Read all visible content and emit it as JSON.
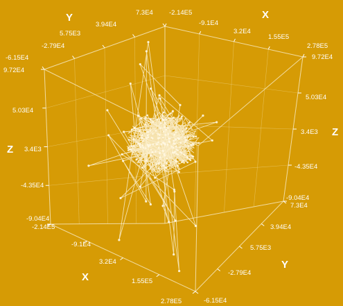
{
  "chart_data": {
    "type": "scatter3d-line",
    "colors": {
      "background": "#D69B05",
      "line": "#FBF0CF",
      "axis": "#FFFFFF"
    },
    "axes": {
      "x": {
        "title": "X",
        "range": [
          -214000,
          278000
        ],
        "ticks": [
          "-2.14E5",
          "-9.1E4",
          "3.2E4",
          "1.55E5",
          "2.78E5"
        ]
      },
      "y": {
        "title": "Y",
        "range": [
          -61500,
          97200
        ],
        "ticks": [
          "-6.15E4",
          "-2.79E4",
          "5.75E3",
          "3.94E4",
          "7.3E4"
        ]
      },
      "z": {
        "title": "Z",
        "range": [
          -90400,
          97200
        ],
        "ticks": [
          "-9.04E4",
          "-4.35E4",
          "3.4E3",
          "5.03E4",
          "9.72E4"
        ]
      }
    },
    "top_y_ticks": [
      "-6.15E4",
      "-2.79E4",
      "5.75E3",
      "3.94E4",
      "7.3E4"
    ],
    "top_x_ticks": [
      "-2.14E5",
      "-9.1E4",
      "3.2E4",
      "1.55E5",
      "2.78E5"
    ],
    "left_z_ticks": [
      "9.72E4",
      "5.03E4",
      "3.4E3",
      "-4.35E4",
      "-9.04E4"
    ],
    "right_z_ticks": [
      "9.72E4",
      "5.03E4",
      "3.4E3",
      "-4.35E4",
      "-9.04E4"
    ],
    "front_x_ticks": [
      "-2.14E5",
      "-9.1E4",
      "3.2E4",
      "1.55E5",
      "2.78E5"
    ],
    "front_y_ticks": [
      "7.3E4",
      "3.94E4",
      "5.75E3",
      "-2.79E4",
      "-6.15E4"
    ],
    "labels": {
      "y_top": "Y",
      "x_top": "X",
      "z_left": "Z",
      "z_right": "Z",
      "x_bottom": "X",
      "y_bottom": "Y"
    },
    "series": [
      {
        "points": [
          [
            -5000,
            10000,
            5000
          ],
          [
            12000,
            -8000,
            15000
          ],
          [
            -20000,
            15000,
            -10000
          ],
          [
            25000,
            5000,
            20000
          ],
          [
            -15000,
            -12000,
            30000
          ],
          [
            30000,
            20000,
            -5000
          ],
          [
            -40000,
            8000,
            10000
          ],
          [
            10000,
            -25000,
            -20000
          ],
          [
            45000,
            12000,
            25000
          ],
          [
            -30000,
            25000,
            35000
          ],
          [
            5000,
            35000,
            -25000
          ],
          [
            -60000,
            -5000,
            20000
          ],
          [
            55000,
            -10000,
            5000
          ],
          [
            -10000,
            30000,
            45000
          ],
          [
            20000,
            -30000,
            35000
          ],
          [
            -45000,
            20000,
            -30000
          ],
          [
            70000,
            25000,
            15000
          ],
          [
            -80000,
            10000,
            40000
          ],
          [
            35000,
            -20000,
            -40000
          ],
          [
            -25000,
            -35000,
            10000
          ],
          [
            15000,
            40000,
            10000
          ],
          [
            -55000,
            30000,
            55000
          ],
          [
            60000,
            5000,
            -30000
          ],
          [
            -5000,
            -45000,
            25000
          ],
          [
            85000,
            -15000,
            40000
          ],
          [
            -100000,
            35000,
            60000
          ],
          [
            40000,
            45000,
            -15000
          ],
          [
            -70000,
            -20000,
            -45000
          ],
          [
            95000,
            30000,
            50000
          ],
          [
            -35000,
            50000,
            5000
          ],
          [
            25000,
            -40000,
            60000
          ],
          [
            -120000,
            15000,
            70000
          ],
          [
            110000,
            -25000,
            -50000
          ],
          [
            -15000,
            20000,
            -60000
          ],
          [
            50000,
            15000,
            65000
          ],
          [
            -150000,
            40000,
            80000
          ],
          [
            130000,
            10000,
            -70000
          ],
          [
            -85000,
            -30000,
            30000
          ],
          [
            75000,
            -45000,
            -20000
          ],
          [
            -180000,
            60000,
            85000
          ],
          [
            150000,
            -35000,
            -80000
          ],
          [
            -60000,
            55000,
            -55000
          ],
          [
            200000,
            -50000,
            -85000
          ],
          [
            -200000,
            70000,
            90000
          ],
          [
            5000,
            -55000,
            -75000
          ],
          [
            -95000,
            45000,
            50000
          ],
          [
            120000,
            35000,
            20000
          ],
          [
            -130000,
            -40000,
            -10000
          ],
          [
            165000,
            20000,
            55000
          ],
          [
            -170000,
            25000,
            10000
          ],
          [
            90000,
            -5000,
            -60000
          ],
          [
            -40000,
            -50000,
            75000
          ]
        ]
      }
    ]
  }
}
